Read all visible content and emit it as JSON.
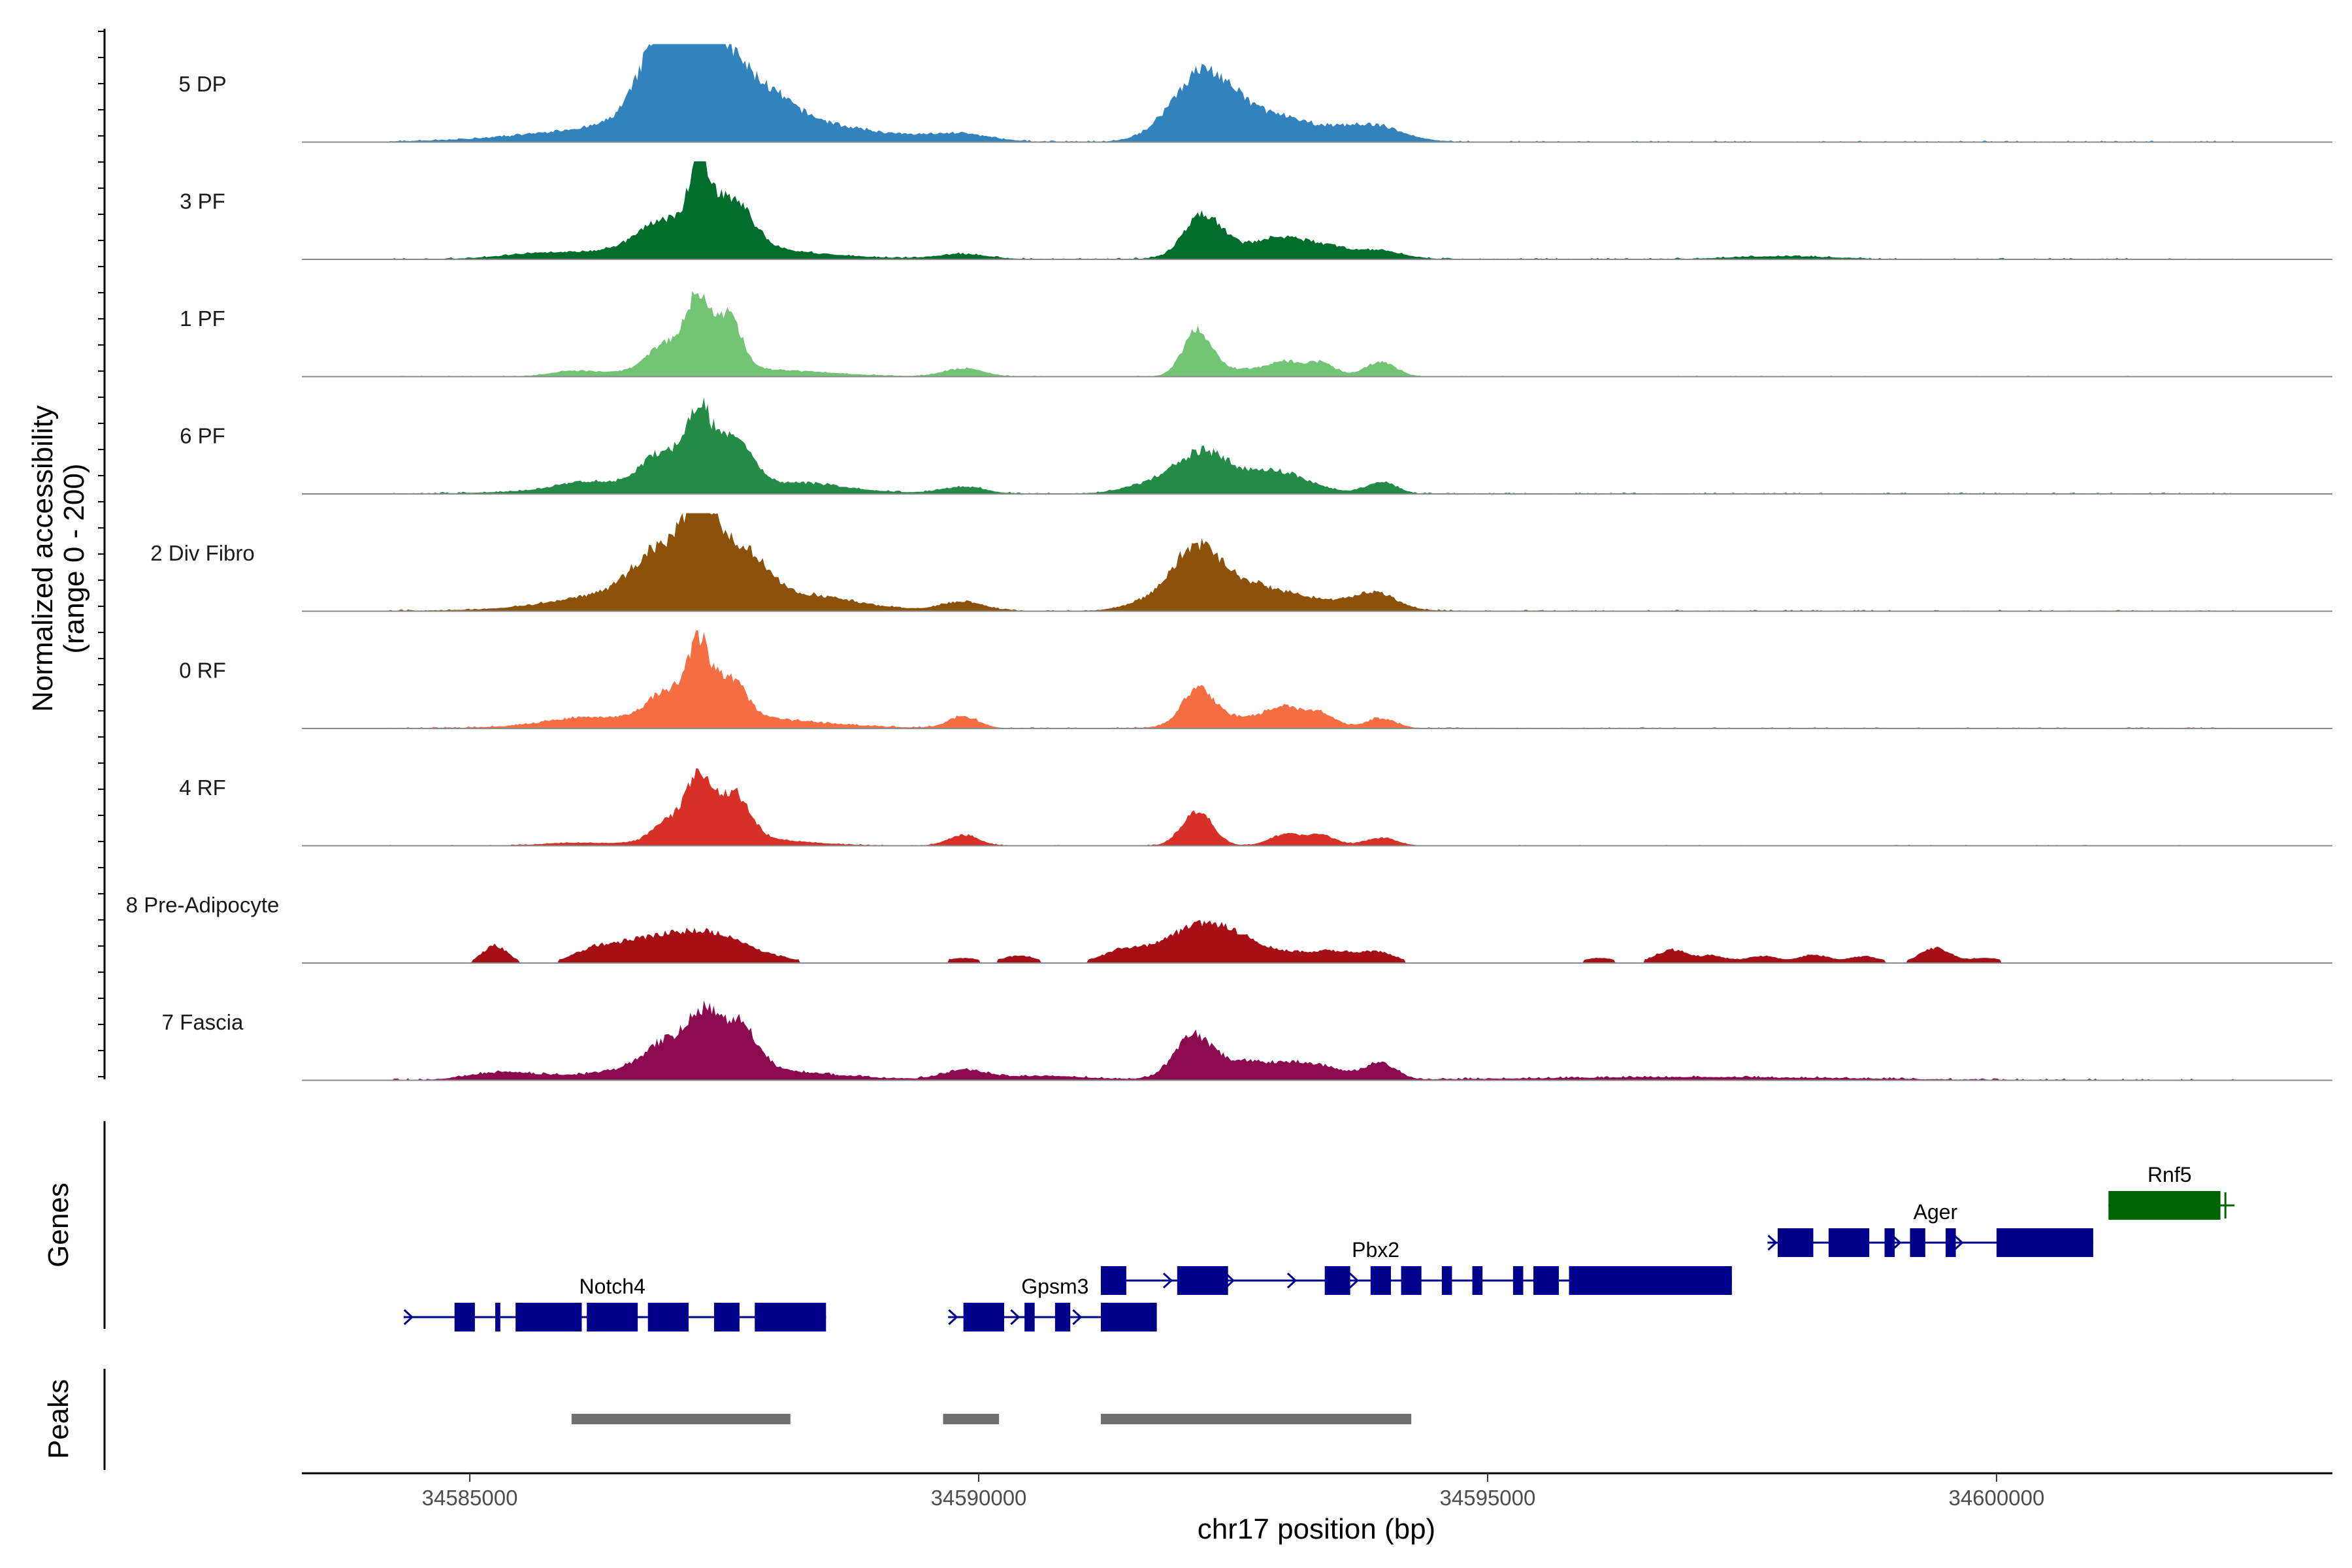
{
  "chart_data": {
    "type": "area",
    "title": "",
    "xlabel": "chr17 position (bp)",
    "ylabel": "Normalized accessibility",
    "ylabel_range": "(range 0 - 200)",
    "ylim": [
      0,
      200
    ],
    "xlim": [
      34583350,
      34603300
    ],
    "x_ticks": [
      34585000,
      34590000,
      34595000,
      34600000
    ],
    "x_tick_labels": [
      "34585000",
      "34590000",
      "34595000",
      "34600000"
    ],
    "genes_label": "Genes",
    "peaks_label": "Peaks",
    "coverage_x_range": [
      34583350,
      34602350
    ],
    "tracks": [
      {
        "name": "5 DP",
        "color": "#3182bd",
        "noise": 3,
        "extent": [
          34584200,
          34602350
        ],
        "peaks": [
          [
            34586900,
            150,
            230
          ],
          [
            34587250,
            132,
            250
          ],
          [
            34587650,
            86,
            400
          ],
          [
            34587250,
            50,
            1100
          ],
          [
            34592050,
            60,
            280
          ],
          [
            34592250,
            75,
            250
          ],
          [
            34592650,
            42,
            350
          ],
          [
            34593200,
            28,
            500
          ],
          [
            34593900,
            24,
            280
          ],
          [
            34589800,
            14,
            300
          ],
          [
            34588700,
            8,
            500
          ]
        ]
      },
      {
        "name": "3 PF",
        "color": "#006d2c",
        "noise": 3,
        "extent": [
          34584200,
          34602350
        ],
        "peaks": [
          [
            34587250,
            148,
            90
          ],
          [
            34587550,
            100,
            210
          ],
          [
            34586900,
            52,
            230
          ],
          [
            34587200,
            30,
            900
          ],
          [
            34592200,
            75,
            180
          ],
          [
            34592600,
            25,
            400
          ],
          [
            34593000,
            28,
            200
          ],
          [
            34593400,
            22,
            200
          ],
          [
            34593900,
            18,
            250
          ],
          [
            34589850,
            10,
            250
          ],
          [
            34585600,
            6,
            300
          ],
          [
            34597900,
            6,
            500
          ]
        ]
      },
      {
        "name": "1 PF",
        "color": "#74c476",
        "noise": 2,
        "extent": [
          34584200,
          34602350
        ],
        "peaks": [
          [
            34587250,
            140,
            110
          ],
          [
            34587550,
            108,
            120
          ],
          [
            34586950,
            55,
            180
          ],
          [
            34587250,
            18,
            700
          ],
          [
            34592150,
            90,
            140
          ],
          [
            34592600,
            15,
            300
          ],
          [
            34593000,
            24,
            150
          ],
          [
            34593350,
            28,
            150
          ],
          [
            34593950,
            30,
            150
          ],
          [
            34589850,
            16,
            200
          ],
          [
            34586000,
            8,
            200
          ],
          [
            34588300,
            5,
            500
          ]
        ]
      },
      {
        "name": "6 PF",
        "color": "#238b45",
        "noise": 3,
        "extent": [
          34584200,
          34602350
        ],
        "peaks": [
          [
            34587250,
            140,
            120
          ],
          [
            34587600,
            90,
            170
          ],
          [
            34586900,
            64,
            200
          ],
          [
            34587250,
            25,
            1000
          ],
          [
            34592200,
            62,
            220
          ],
          [
            34592650,
            30,
            400
          ],
          [
            34591800,
            25,
            300
          ],
          [
            34593000,
            24,
            300
          ],
          [
            34593950,
            24,
            150
          ],
          [
            34589850,
            14,
            200
          ],
          [
            34586100,
            12,
            250
          ],
          [
            34588400,
            8,
            300
          ]
        ]
      },
      {
        "name": "2 Div Fibro",
        "color": "#8c510a",
        "noise": 3,
        "extent": [
          34584200,
          34602350
        ],
        "peaks": [
          [
            34587250,
            148,
            160
          ],
          [
            34587650,
            95,
            250
          ],
          [
            34586850,
            86,
            250
          ],
          [
            34587300,
            40,
            1000
          ],
          [
            34592150,
            90,
            220
          ],
          [
            34592550,
            50,
            400
          ],
          [
            34591850,
            25,
            300
          ],
          [
            34593300,
            18,
            500
          ],
          [
            34593900,
            30,
            200
          ],
          [
            34589850,
            18,
            200
          ],
          [
            34586200,
            10,
            400
          ],
          [
            34588500,
            10,
            300
          ]
        ]
      },
      {
        "name": "0 RF",
        "color": "#f46d43",
        "noise": 3,
        "extent": [
          34584200,
          34602350
        ],
        "peaks": [
          [
            34587250,
            135,
            100
          ],
          [
            34587550,
            80,
            150
          ],
          [
            34586950,
            52,
            180
          ],
          [
            34587200,
            30,
            900
          ],
          [
            34592150,
            70,
            150
          ],
          [
            34592600,
            24,
            400
          ],
          [
            34593000,
            30,
            150
          ],
          [
            34593350,
            30,
            150
          ],
          [
            34593950,
            20,
            150
          ],
          [
            34589850,
            24,
            150
          ],
          [
            34586000,
            8,
            300
          ]
        ]
      },
      {
        "name": "4 RF",
        "color": "#d73027",
        "noise": 2,
        "extent": [
          34584200,
          34602350
        ],
        "peaks": [
          [
            34587250,
            130,
            120
          ],
          [
            34587600,
            90,
            150
          ],
          [
            34586950,
            40,
            150
          ],
          [
            34587500,
            18,
            600
          ],
          [
            34592150,
            70,
            150
          ],
          [
            34593000,
            22,
            150
          ],
          [
            34593350,
            22,
            150
          ],
          [
            34593950,
            16,
            150
          ],
          [
            34589850,
            22,
            150
          ],
          [
            34586000,
            5,
            300
          ]
        ]
      },
      {
        "name": "8 Pre-Adipocyte",
        "color": "#a50f15",
        "noise": 2,
        "extent": [
          34584300,
          34602350
        ],
        "segments": true,
        "peaks": [
          [
            34587250,
            65,
            450
          ],
          [
            34586500,
            28,
            300
          ],
          [
            34592150,
            65,
            350
          ],
          [
            34592600,
            28,
            400
          ],
          [
            34591400,
            22,
            200
          ],
          [
            34593500,
            22,
            300
          ],
          [
            34593950,
            16,
            150
          ],
          [
            34585250,
            35,
            120
          ],
          [
            34586150,
            12,
            150
          ],
          [
            34589850,
            10,
            150
          ],
          [
            34590400,
            15,
            150
          ],
          [
            34596100,
            10,
            150
          ],
          [
            34596800,
            26,
            150
          ],
          [
            34597200,
            14,
            150
          ],
          [
            34597700,
            14,
            150
          ],
          [
            34598200,
            16,
            150
          ],
          [
            34598700,
            14,
            150
          ],
          [
            34599400,
            30,
            150
          ],
          [
            34599900,
            10,
            150
          ]
        ]
      },
      {
        "name": "7 Fascia",
        "color": "#8c0a4f",
        "noise": 4,
        "extent": [
          34584200,
          34602350
        ],
        "peaks": [
          [
            34587300,
            95,
            140
          ],
          [
            34587650,
            90,
            160
          ],
          [
            34586950,
            55,
            220
          ],
          [
            34587300,
            30,
            900
          ],
          [
            34592100,
            75,
            180
          ],
          [
            34592600,
            35,
            400
          ],
          [
            34593300,
            26,
            300
          ],
          [
            34593950,
            32,
            150
          ],
          [
            34585300,
            14,
            300
          ],
          [
            34589850,
            18,
            200
          ],
          [
            34590600,
            8,
            500
          ],
          [
            34597000,
            6,
            1500
          ]
        ]
      }
    ],
    "genes": [
      {
        "name": "Notch4",
        "strand": "+",
        "row": 2,
        "color": "#00008b",
        "start": 34584350,
        "end": 34588500,
        "label_x": 34586400,
        "exons": [
          [
            34584850,
            34585050
          ],
          [
            34585250,
            34585300
          ],
          [
            34585450,
            34586100
          ],
          [
            34586150,
            34586650
          ],
          [
            34586750,
            34587150
          ],
          [
            34587400,
            34587650
          ],
          [
            34587800,
            34588500
          ]
        ]
      },
      {
        "name": "Gpsm3",
        "strand": "+",
        "row": 2,
        "color": "#00008b",
        "start": 34589700,
        "end": 34591700,
        "label_x": 34590750,
        "exons": [
          [
            34589850,
            34590250
          ],
          [
            34590450,
            34590550
          ],
          [
            34590750,
            34590900
          ],
          [
            34591200,
            34591750
          ]
        ]
      },
      {
        "name": "Pbx2",
        "strand": "+",
        "row": 1,
        "color": "#00008b",
        "start": 34591200,
        "end": 34597400,
        "label_x": 34593900,
        "exons": [
          [
            34591200,
            34591450
          ],
          [
            34591950,
            34592450
          ],
          [
            34593400,
            34593650
          ],
          [
            34593850,
            34594050
          ],
          [
            34594150,
            34594350
          ],
          [
            34594550,
            34594650
          ],
          [
            34594850,
            34594950
          ],
          [
            34595250,
            34595350
          ],
          [
            34595450,
            34595700
          ],
          [
            34595800,
            34597400
          ]
        ]
      },
      {
        "name": "Ager",
        "strand": "+",
        "row": 0,
        "color": "#00008b",
        "start": 34597750,
        "end": 34600950,
        "label_x": 34599400,
        "exons": [
          [
            34597850,
            34598200
          ],
          [
            34598350,
            34598750
          ],
          [
            34598900,
            34599000
          ],
          [
            34599150,
            34599300
          ],
          [
            34599500,
            34599600
          ],
          [
            34600000,
            34600950
          ]
        ]
      },
      {
        "name": "Rnf5",
        "strand": "-",
        "row": -1,
        "color": "#006400",
        "start": 34601100,
        "end": 34602300,
        "label_x": 34601700,
        "exons": [
          [
            34601100,
            34602200
          ]
        ]
      }
    ],
    "peaks": [
      [
        34586000,
        34588150
      ],
      [
        34589650,
        34590200
      ],
      [
        34591200,
        34594250
      ]
    ]
  }
}
